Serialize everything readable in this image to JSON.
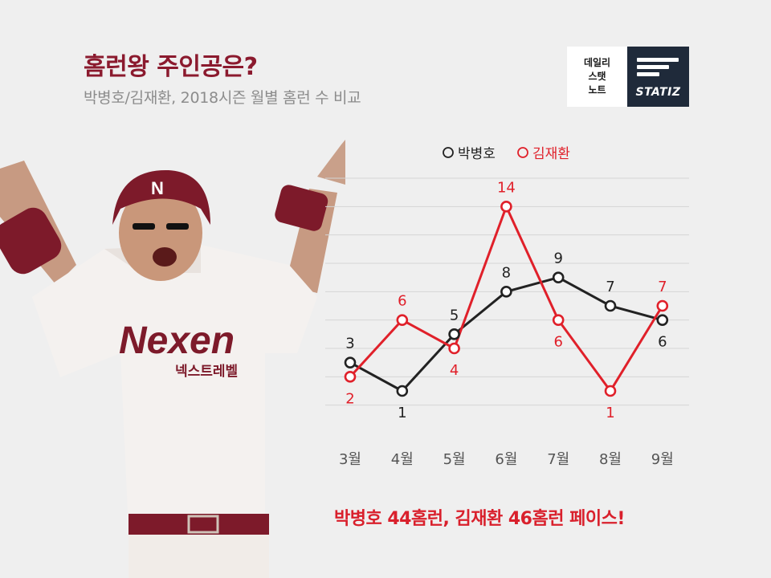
{
  "header": {
    "title": "홈런왕 주인공은?",
    "subtitle": "박병호/김재환, 2018시즌 월별 홈런 수 비교"
  },
  "logo": {
    "line1": "데일리",
    "line2": "스탯",
    "line3": "노트",
    "wordmark": "STATIZ"
  },
  "player": {
    "jersey_text": "Nexen",
    "jersey_subtext": "넥스트레벨",
    "helmet_letter": "N"
  },
  "colors": {
    "park": "#222222",
    "kim": "#e0202a",
    "title": "#8b1a2e",
    "background": "#efefef"
  },
  "chart_data": {
    "type": "line",
    "categories": [
      "3월",
      "4월",
      "5월",
      "6월",
      "7월",
      "8월",
      "9월"
    ],
    "series": [
      {
        "name": "박병호",
        "values": [
          3,
          1,
          5,
          8,
          9,
          7,
          6
        ]
      },
      {
        "name": "김재환",
        "values": [
          2,
          6,
          4,
          14,
          6,
          1,
          7
        ]
      }
    ],
    "ylim": [
      -2,
      16
    ],
    "grid": true,
    "legend_position": "top-center"
  },
  "footer": {
    "text": "박병호 44홈런, 김재환 46홈런 페이스!"
  }
}
